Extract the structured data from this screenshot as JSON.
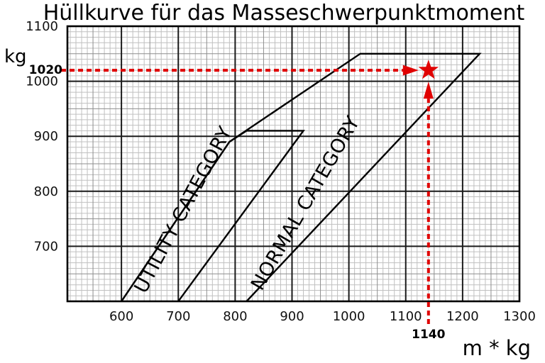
{
  "title": "Hüllkurve für das Masseschwerpunktmoment",
  "chart_data": {
    "type": "line",
    "title": "Hüllkurve für das Masseschwerpunktmoment",
    "xlabel": "m * kg",
    "ylabel": "kg",
    "xlim": [
      505,
      1300
    ],
    "ylim": [
      600,
      1100
    ],
    "x_ticks": [
      600,
      700,
      800,
      900,
      1000,
      1100,
      1200,
      1300
    ],
    "y_ticks": [
      1100,
      1000,
      900,
      800,
      700
    ],
    "grid": {
      "on": true,
      "minor_step": 10,
      "semi_step": 50,
      "major_step": 100
    },
    "legend_position": "none",
    "series": [
      {
        "name": "UTILITY CATEGORY",
        "points": [
          [
            600,
            600
          ],
          [
            790,
            890
          ],
          [
            820,
            910
          ],
          [
            920,
            910
          ],
          [
            700,
            600
          ]
        ]
      },
      {
        "name": "NORMAL CATEGORY",
        "points": [
          [
            600,
            600
          ],
          [
            790,
            890
          ],
          [
            1020,
            1050
          ],
          [
            1230,
            1050
          ],
          [
            820,
            600
          ]
        ]
      }
    ],
    "marker": {
      "x": 1140,
      "y": 1020,
      "x_label": "1140",
      "y_label": "1020",
      "symbol": "star"
    }
  },
  "colors": {
    "accent_red": "#e00000",
    "envelope_line": "#000000",
    "grid_major": "#1a1a1a",
    "grid_semi": "#8e8e8e",
    "grid_minor": "#c0c0c0"
  }
}
